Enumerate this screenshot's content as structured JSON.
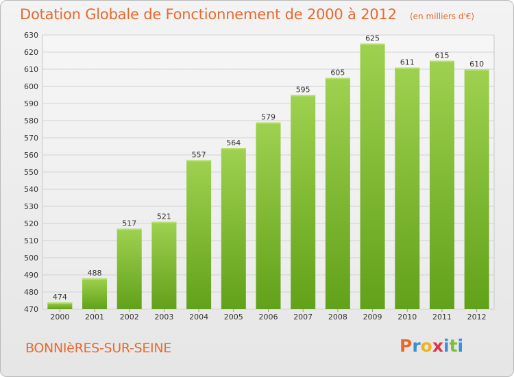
{
  "header": {
    "title": "Dotation Globale de Fonctionnement de 2000 à 2012",
    "subtitle": "(en milliers d'€)"
  },
  "footer": {
    "commune": "BONNIèRES-SUR-SEINE",
    "brand_letters": [
      "P",
      "r",
      "o",
      "x",
      "i",
      "t",
      "i"
    ],
    "brand_colors": [
      "#e8692c",
      "#3b8fd6",
      "#f0b222",
      "#d9344a",
      "#3b8fd6",
      "#7bbf3a",
      "#3b8fd6"
    ]
  },
  "chart_data": {
    "type": "bar",
    "title": "Dotation Globale de Fonctionnement de 2000 à 2012",
    "subtitle": "(en milliers d'€)",
    "xlabel": "",
    "ylabel": "",
    "categories": [
      "2000",
      "2001",
      "2002",
      "2003",
      "2004",
      "2005",
      "2006",
      "2007",
      "2008",
      "2009",
      "2010",
      "2011",
      "2012"
    ],
    "values": [
      474,
      488,
      517,
      521,
      557,
      564,
      579,
      595,
      605,
      625,
      611,
      615,
      610
    ],
    "ylim": [
      470,
      630
    ],
    "yticks": [
      470,
      480,
      490,
      500,
      510,
      520,
      530,
      540,
      550,
      560,
      570,
      580,
      590,
      600,
      610,
      620,
      630
    ],
    "grid": true,
    "bar_color": "#7cbb34"
  }
}
